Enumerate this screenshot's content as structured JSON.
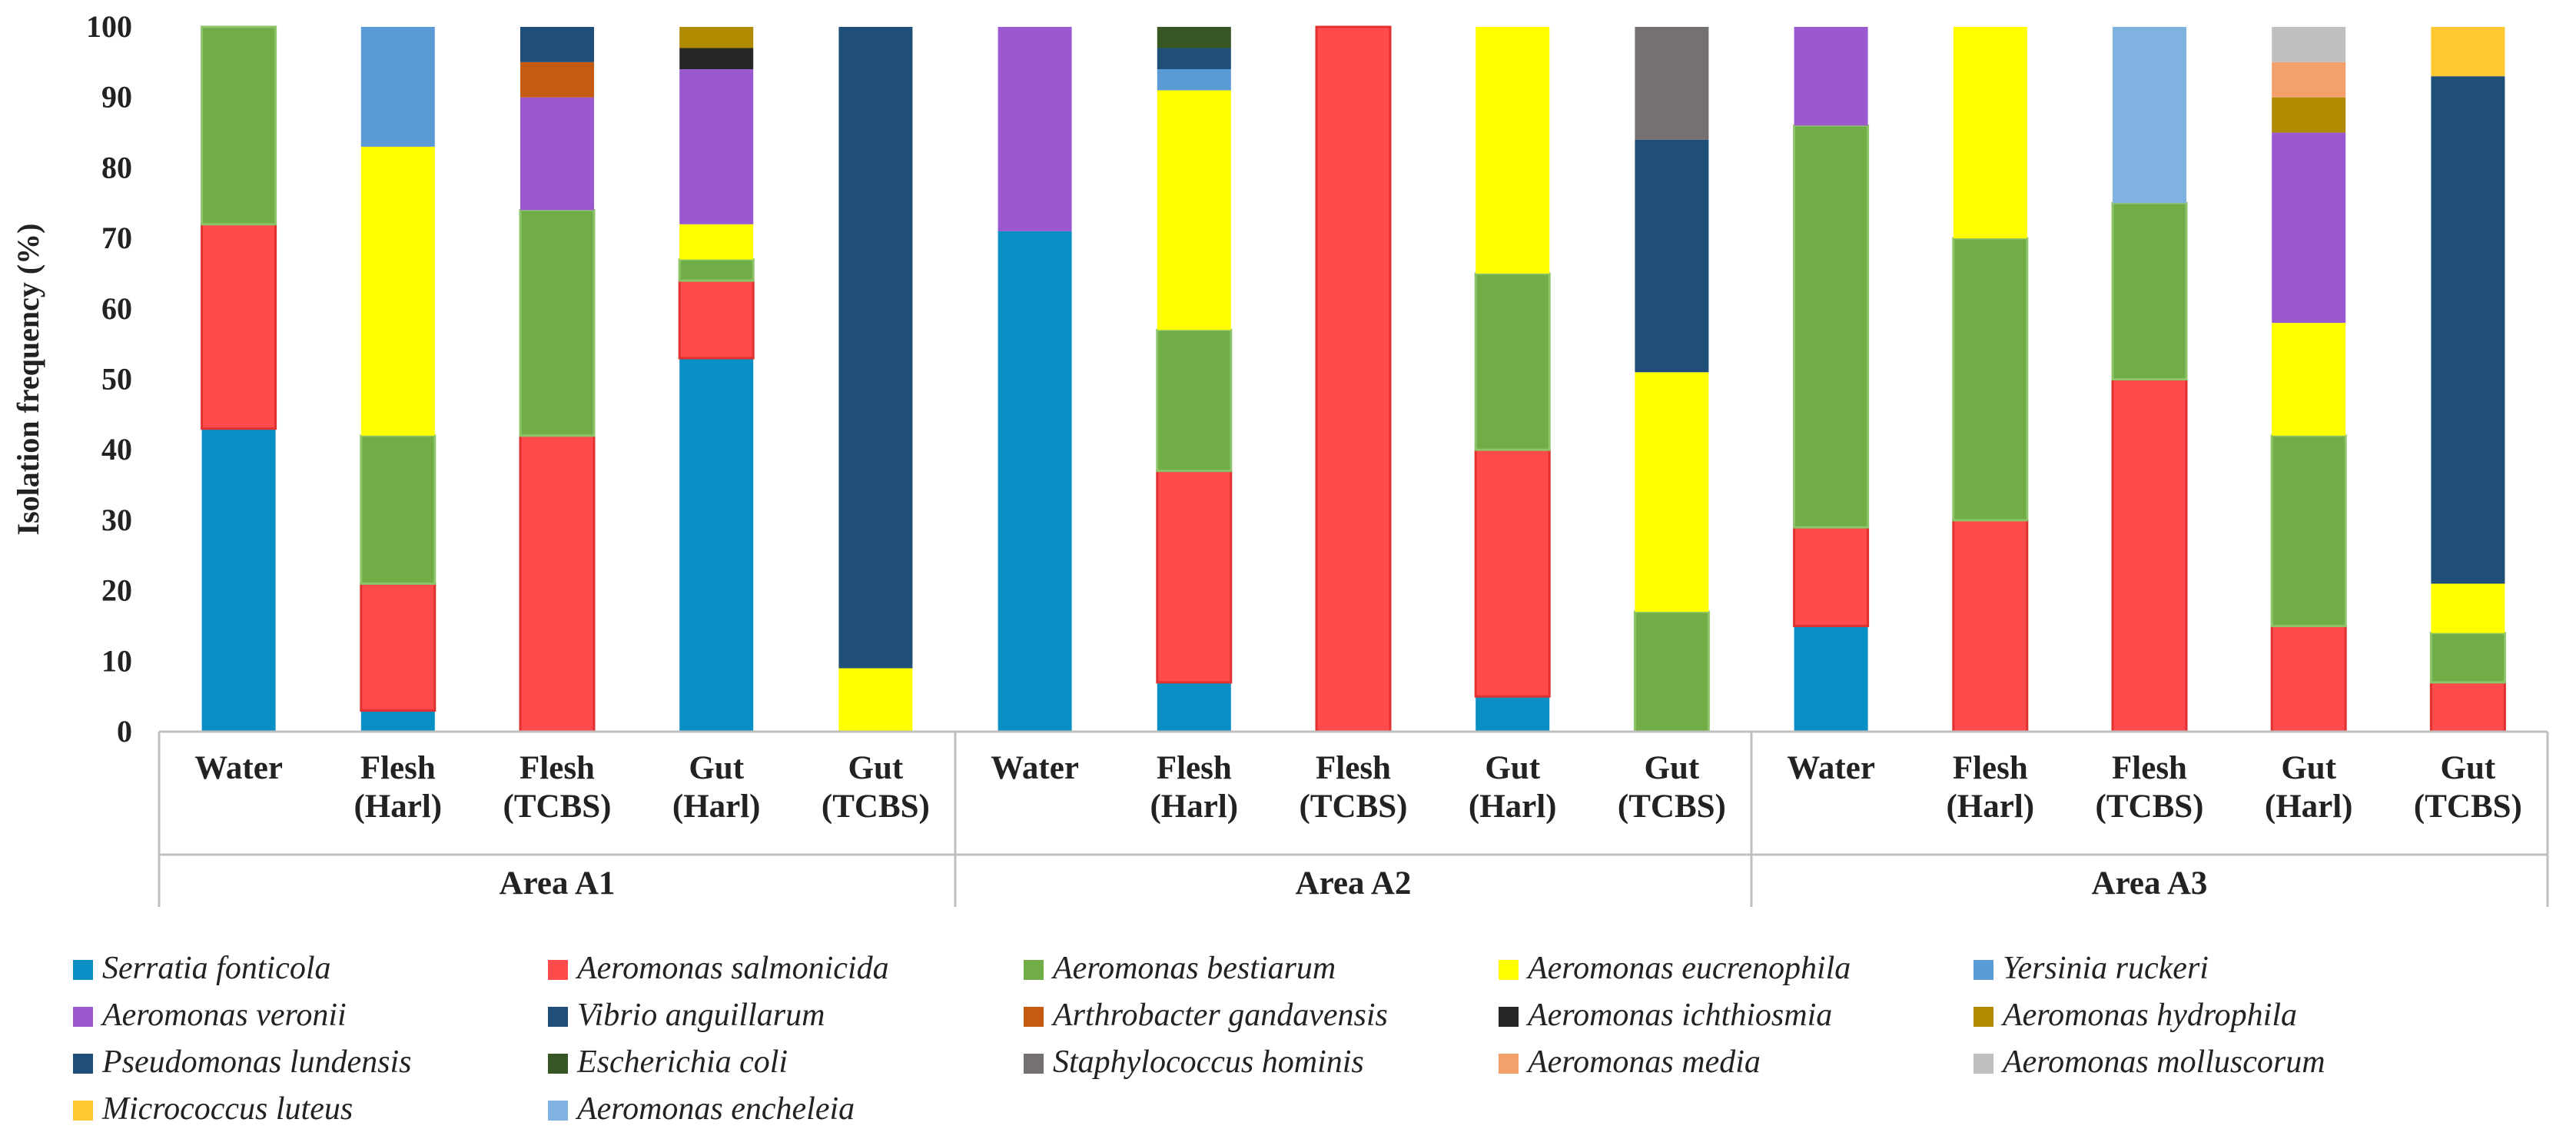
{
  "chart_data": {
    "type": "bar",
    "stacked": true,
    "title": "",
    "ylabel": "Isolation frequency (%)",
    "xlabel": "",
    "ylim": [
      0,
      100
    ],
    "yticks": [
      0,
      10,
      20,
      30,
      40,
      50,
      60,
      70,
      80,
      90,
      100
    ],
    "grid": false,
    "legend_position": "bottom",
    "groups": [
      {
        "name": "Area A1",
        "categories": [
          [
            "Water"
          ],
          [
            "Flesh",
            "(Harl)"
          ],
          [
            "Flesh",
            "(TCBS)"
          ],
          [
            "Gut",
            "(Harl)"
          ],
          [
            "Gut",
            "(TCBS)"
          ]
        ]
      },
      {
        "name": "Area A2",
        "categories": [
          [
            "Water"
          ],
          [
            "Flesh",
            "(Harl)"
          ],
          [
            "Flesh",
            "(TCBS)"
          ],
          [
            "Gut",
            "(Harl)"
          ],
          [
            "Gut",
            "(TCBS)"
          ]
        ]
      },
      {
        "name": "Area A3",
        "categories": [
          [
            "Water"
          ],
          [
            "Flesh",
            "(Harl)"
          ],
          [
            "Flesh",
            "(TCBS)"
          ],
          [
            "Gut",
            "(Harl)"
          ],
          [
            "Gut",
            "(TCBS)"
          ]
        ]
      }
    ],
    "series": [
      {
        "name": "Serratia fonticola",
        "color": "#0a8fc4",
        "values": [
          43,
          3,
          0,
          53,
          0,
          71,
          7,
          0,
          5,
          0,
          15,
          0,
          0,
          0,
          0
        ]
      },
      {
        "name": "Aeromonas salmonicida",
        "color": "#ff4b4b",
        "values": [
          29,
          18,
          42,
          11,
          0,
          0,
          30,
          100,
          35,
          0,
          14,
          30,
          50,
          15,
          7
        ]
      },
      {
        "name": "Aeromonas bestiarum",
        "color": "#70ad47",
        "values": [
          28,
          21,
          32,
          3,
          0,
          0,
          20,
          0,
          25,
          17,
          57,
          40,
          25,
          27,
          7
        ]
      },
      {
        "name": "Aeromonas eucrenophila",
        "color": "#ffff00",
        "values": [
          0,
          41,
          0,
          5,
          9,
          0,
          34,
          0,
          35,
          34,
          0,
          30,
          0,
          16,
          7
        ]
      },
      {
        "name": "Yersinia ruckeri",
        "color": "#5b9bd5",
        "values": [
          0,
          17,
          0,
          0,
          0,
          0,
          3,
          0,
          0,
          0,
          0,
          0,
          0,
          0,
          0
        ]
      },
      {
        "name": "Aeromonas veronii",
        "color": "#9b59d0",
        "values": [
          0,
          0,
          16,
          22,
          0,
          29,
          0,
          0,
          0,
          0,
          14,
          0,
          0,
          27,
          0
        ]
      },
      {
        "name": "Vibrio anguillarum",
        "color": "#1f4e79",
        "values": [
          0,
          0,
          0,
          0,
          91,
          0,
          0,
          0,
          0,
          33,
          0,
          0,
          0,
          0,
          72
        ]
      },
      {
        "name": "Arthrobacter gandavensis",
        "color": "#c55a11",
        "values": [
          0,
          0,
          5,
          0,
          0,
          0,
          0,
          0,
          0,
          0,
          0,
          0,
          0,
          0,
          0
        ]
      },
      {
        "name": "Aeromonas ichthiosmia",
        "color": "#262626",
        "values": [
          0,
          0,
          0,
          3,
          0,
          0,
          0,
          0,
          0,
          0,
          0,
          0,
          0,
          0,
          0
        ]
      },
      {
        "name": "Aeromonas hydrophila",
        "color": "#b08a00",
        "values": [
          0,
          0,
          0,
          3,
          0,
          0,
          0,
          0,
          0,
          0,
          0,
          0,
          0,
          5,
          0
        ]
      },
      {
        "name": "Pseudomonas lundensis",
        "color": "#1f4e79",
        "values": [
          0,
          0,
          5,
          0,
          0,
          0,
          3,
          0,
          0,
          0,
          0,
          0,
          0,
          0,
          0
        ]
      },
      {
        "name": "Escherichia coli",
        "color": "#375623",
        "values": [
          0,
          0,
          0,
          0,
          0,
          0,
          3,
          0,
          0,
          0,
          0,
          0,
          0,
          0,
          0
        ]
      },
      {
        "name": "Staphylococcus hominis",
        "color": "#767171",
        "values": [
          0,
          0,
          0,
          0,
          0,
          0,
          0,
          0,
          0,
          16,
          0,
          0,
          0,
          0,
          0
        ]
      },
      {
        "name": "Aeromonas media",
        "color": "#f4a06a",
        "values": [
          0,
          0,
          0,
          0,
          0,
          0,
          0,
          0,
          0,
          0,
          0,
          0,
          0,
          5,
          0
        ]
      },
      {
        "name": "Aeromonas molluscorum",
        "color": "#bfbfbf",
        "values": [
          0,
          0,
          0,
          0,
          0,
          0,
          0,
          0,
          0,
          0,
          0,
          0,
          0,
          5,
          0
        ]
      },
      {
        "name": "Micrococcus luteus",
        "color": "#ffc830",
        "values": [
          0,
          0,
          0,
          0,
          0,
          0,
          0,
          0,
          0,
          0,
          0,
          0,
          0,
          0,
          7
        ]
      },
      {
        "name": "Aeromonas encheleia",
        "color": "#7fb2e0",
        "values": [
          0,
          0,
          0,
          0,
          0,
          0,
          0,
          0,
          0,
          0,
          0,
          0,
          25,
          0,
          0
        ]
      }
    ]
  }
}
